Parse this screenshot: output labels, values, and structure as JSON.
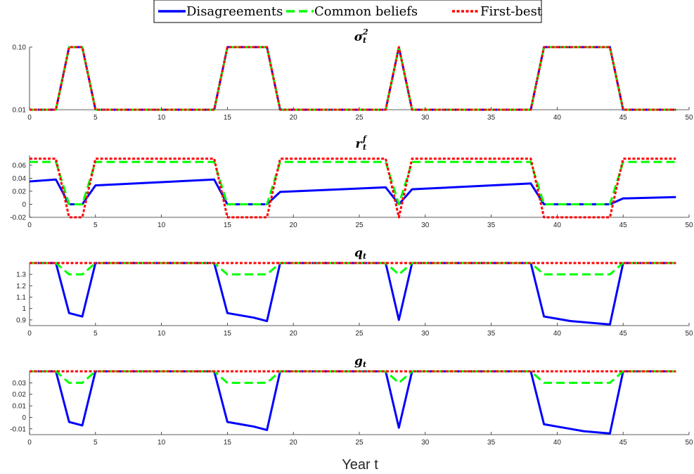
{
  "legend": {
    "position": "top-center",
    "entries": [
      {
        "label": "Disagreements",
        "color": "#0000ff",
        "style": "solid"
      },
      {
        "label": "Common beliefs",
        "color": "#00ff00",
        "style": "dashed"
      },
      {
        "label": "First-best",
        "color": "#ff0000",
        "style": "dotted"
      }
    ]
  },
  "xlabel": "Year t",
  "chart_data": [
    {
      "type": "line",
      "title": "σ",
      "title_sub": "t",
      "title_sup": "2",
      "xlim": [
        0,
        50
      ],
      "ylim": [
        0.01,
        0.1
      ],
      "x_ticks": [
        0,
        5,
        10,
        15,
        20,
        25,
        30,
        35,
        40,
        45,
        50
      ],
      "y_ticks": [
        0.01,
        0.1
      ],
      "y_tick_labels": [
        "0.01",
        "0.10"
      ],
      "grid": false,
      "series": [
        {
          "name": "Disagreements",
          "x": [
            0,
            2,
            3,
            4,
            5,
            14,
            15,
            18,
            19,
            27,
            28,
            29,
            38,
            39,
            44,
            45,
            49
          ],
          "y": [
            0.01,
            0.01,
            0.1,
            0.1,
            0.01,
            0.01,
            0.1,
            0.1,
            0.01,
            0.01,
            0.1,
            0.01,
            0.01,
            0.1,
            0.1,
            0.01,
            0.01
          ]
        },
        {
          "name": "Common beliefs",
          "x": [
            0,
            2,
            3,
            4,
            5,
            14,
            15,
            18,
            19,
            27,
            28,
            29,
            38,
            39,
            44,
            45,
            49
          ],
          "y": [
            0.01,
            0.01,
            0.1,
            0.1,
            0.01,
            0.01,
            0.1,
            0.1,
            0.01,
            0.01,
            0.1,
            0.01,
            0.01,
            0.1,
            0.1,
            0.01,
            0.01
          ]
        },
        {
          "name": "First-best",
          "x": [
            0,
            2,
            3,
            4,
            5,
            14,
            15,
            18,
            19,
            27,
            28,
            29,
            38,
            39,
            44,
            45,
            49
          ],
          "y": [
            0.01,
            0.01,
            0.1,
            0.1,
            0.01,
            0.01,
            0.1,
            0.1,
            0.01,
            0.01,
            0.1,
            0.01,
            0.01,
            0.1,
            0.1,
            0.01,
            0.01
          ]
        }
      ]
    },
    {
      "type": "line",
      "title": "r",
      "title_sub": "t",
      "title_sup": "f",
      "xlim": [
        0,
        50
      ],
      "ylim": [
        -0.02,
        0.075
      ],
      "x_ticks": [
        0,
        5,
        10,
        15,
        20,
        25,
        30,
        35,
        40,
        45,
        50
      ],
      "y_ticks": [
        -0.02,
        0,
        0.02,
        0.04,
        0.06
      ],
      "y_tick_labels": [
        "-0.02",
        "0",
        "0.02",
        "0.04",
        "0.06"
      ],
      "grid": false,
      "series": [
        {
          "name": "Disagreements",
          "x": [
            0,
            2,
            3,
            4,
            5,
            14,
            15,
            18,
            19,
            27,
            28,
            29,
            38,
            39,
            44,
            45,
            49
          ],
          "y": [
            0.035,
            0.038,
            0,
            0,
            0.029,
            0.038,
            0,
            0,
            0.019,
            0.026,
            0,
            0.023,
            0.032,
            0,
            0,
            0.009,
            0.011
          ]
        },
        {
          "name": "Common beliefs",
          "x": [
            0,
            2,
            3,
            4,
            5,
            14,
            15,
            18,
            19,
            27,
            28,
            29,
            38,
            39,
            44,
            45,
            49
          ],
          "y": [
            0.065,
            0.065,
            0,
            0,
            0.065,
            0.065,
            0,
            0,
            0.065,
            0.065,
            0,
            0.065,
            0.065,
            0,
            0,
            0.065,
            0.065
          ]
        },
        {
          "name": "First-best",
          "x": [
            0,
            2,
            3,
            4,
            5,
            14,
            15,
            18,
            19,
            27,
            28,
            29,
            38,
            39,
            44,
            45,
            49
          ],
          "y": [
            0.07,
            0.07,
            -0.02,
            -0.02,
            0.07,
            0.07,
            -0.02,
            -0.02,
            0.07,
            0.07,
            -0.02,
            0.07,
            0.07,
            -0.02,
            -0.02,
            0.07,
            0.07
          ]
        }
      ]
    },
    {
      "type": "line",
      "title": "q",
      "title_sub": "t",
      "title_sup": "",
      "xlim": [
        0,
        50
      ],
      "ylim": [
        0.85,
        1.4
      ],
      "x_ticks": [
        0,
        5,
        10,
        15,
        20,
        25,
        30,
        35,
        40,
        45,
        50
      ],
      "y_ticks": [
        0.9,
        1,
        1.1,
        1.2,
        1.3
      ],
      "y_tick_labels": [
        "0.9",
        "1",
        "1.1",
        "1.2",
        "1.3"
      ],
      "grid": false,
      "series": [
        {
          "name": "Disagreements",
          "x": [
            0,
            2,
            3,
            4,
            5,
            14,
            15,
            16,
            17,
            18,
            19,
            27,
            28,
            29,
            38,
            39,
            40,
            41,
            42,
            43,
            44,
            45,
            49
          ],
          "y": [
            1.4,
            1.4,
            0.96,
            0.93,
            1.4,
            1.4,
            0.96,
            0.94,
            0.92,
            0.89,
            1.4,
            1.4,
            0.9,
            1.4,
            1.4,
            0.93,
            0.91,
            0.89,
            0.88,
            0.87,
            0.86,
            1.4,
            1.4
          ]
        },
        {
          "name": "Common beliefs",
          "x": [
            0,
            2,
            3,
            4,
            5,
            14,
            15,
            18,
            19,
            27,
            28,
            29,
            38,
            39,
            44,
            45,
            49
          ],
          "y": [
            1.4,
            1.4,
            1.3,
            1.3,
            1.4,
            1.4,
            1.3,
            1.3,
            1.4,
            1.4,
            1.3,
            1.4,
            1.4,
            1.3,
            1.3,
            1.4,
            1.4
          ]
        },
        {
          "name": "First-best",
          "x": [
            0,
            49
          ],
          "y": [
            1.4,
            1.4
          ]
        }
      ]
    },
    {
      "type": "line",
      "title": "g",
      "title_sub": "t",
      "title_sup": "",
      "xlim": [
        0,
        50
      ],
      "ylim": [
        -0.015,
        0.04
      ],
      "x_ticks": [
        0,
        5,
        10,
        15,
        20,
        25,
        30,
        35,
        40,
        45,
        50
      ],
      "y_ticks": [
        -0.01,
        0,
        0.01,
        0.02,
        0.03
      ],
      "y_tick_labels": [
        "-0.01",
        "0",
        "0.01",
        "0.02",
        "0.03"
      ],
      "grid": false,
      "series": [
        {
          "name": "Disagreements",
          "x": [
            0,
            2,
            3,
            4,
            5,
            14,
            15,
            16,
            17,
            18,
            19,
            27,
            28,
            29,
            38,
            39,
            40,
            41,
            42,
            43,
            44,
            45,
            49
          ],
          "y": [
            0.04,
            0.04,
            -0.004,
            -0.007,
            0.04,
            0.04,
            -0.004,
            -0.006,
            -0.008,
            -0.011,
            0.04,
            0.04,
            -0.009,
            0.04,
            0.04,
            -0.006,
            -0.008,
            -0.01,
            -0.012,
            -0.013,
            -0.014,
            0.04,
            0.04
          ]
        },
        {
          "name": "Common beliefs",
          "x": [
            0,
            2,
            3,
            4,
            5,
            14,
            15,
            18,
            19,
            27,
            28,
            29,
            38,
            39,
            44,
            45,
            49
          ],
          "y": [
            0.04,
            0.04,
            0.03,
            0.03,
            0.04,
            0.04,
            0.03,
            0.03,
            0.04,
            0.04,
            0.03,
            0.04,
            0.04,
            0.03,
            0.03,
            0.04,
            0.04
          ]
        },
        {
          "name": "First-best",
          "x": [
            0,
            49
          ],
          "y": [
            0.04,
            0.04
          ]
        }
      ]
    }
  ]
}
